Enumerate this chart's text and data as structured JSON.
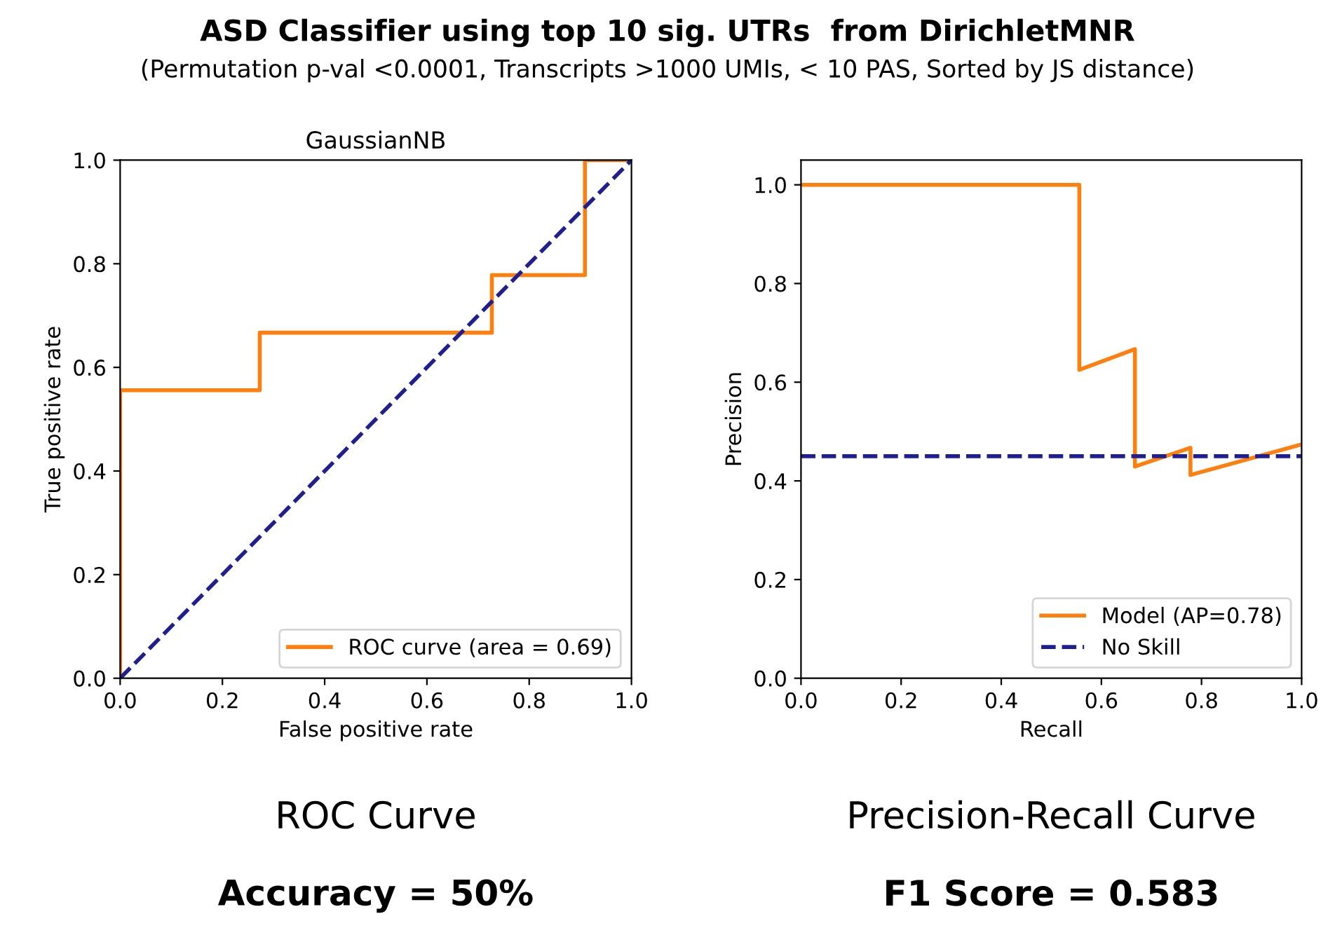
{
  "chart_data": [
    {
      "type": "line",
      "title": "GaussianNB",
      "xlabel": "False positive rate",
      "ylabel": "True positive rate",
      "annotations": [
        "ASD Classifier using top 10 sig. UTRs  from DirichletMNR",
        "(Permutation p-val <0.0001, Transcripts >1000 UMIs, < 10 PAS, Sorted by JS distance)",
        "ROC Curve",
        "Accuracy = 50%"
      ],
      "series": [
        {
          "name": "ROC curve (area = 0.69)",
          "color": "#ff7f0e",
          "line_style": "solid",
          "x": [
            0,
            0,
            0.273,
            0.273,
            0.727,
            0.727,
            0.909,
            0.909,
            1.0
          ],
          "values": [
            0,
            0.556,
            0.556,
            0.667,
            0.667,
            0.778,
            0.778,
            1.0,
            1.0
          ]
        },
        {
          "color": "#1f1f8f",
          "line_style": "dashed",
          "x": [
            0,
            1.0
          ],
          "values": [
            0,
            1.0
          ]
        }
      ],
      "xlim": [
        0,
        1.0
      ],
      "ylim": [
        0,
        1.0
      ],
      "xticks": [
        {
          "value": 0,
          "label": "0.0"
        },
        {
          "value": 0.2,
          "label": "0.2"
        },
        {
          "value": 0.4,
          "label": "0.4"
        },
        {
          "value": 0.6,
          "label": "0.6"
        },
        {
          "value": 0.8,
          "label": "0.8"
        },
        {
          "value": 1.0,
          "label": "1.0"
        }
      ],
      "yticks": [
        {
          "value": 0,
          "label": "0.0"
        },
        {
          "value": 0.2,
          "label": "0.2"
        },
        {
          "value": 0.4,
          "label": "0.4"
        },
        {
          "value": 0.6,
          "label": "0.6"
        },
        {
          "value": 0.8,
          "label": "0.8"
        },
        {
          "value": 1.0,
          "label": "1.0"
        }
      ],
      "legend": "bottom right",
      "grid": false,
      "marker": "none"
    },
    {
      "type": "line",
      "xlabel": "Recall",
      "ylabel": "Precision",
      "annotations": [
        "Precision-Recall Curve",
        "F1 Score = 0.583"
      ],
      "series": [
        {
          "name": "Model (AP=0.78)",
          "color": "#ff7f0e",
          "line_style": "solid",
          "x": [
            0,
            0.556,
            0.556,
            0.667,
            0.667,
            0.778,
            0.778,
            1.0
          ],
          "values": [
            1.0,
            1.0,
            0.625,
            0.667,
            0.429,
            0.467,
            0.412,
            0.474
          ]
        },
        {
          "name": "No Skill",
          "color": "#1f1f8f",
          "line_style": "dashed",
          "x": [
            0,
            1.0
          ],
          "values": [
            0.45,
            0.45
          ]
        }
      ],
      "xlim": [
        0,
        1.0
      ],
      "ylim": [
        0,
        1.05
      ],
      "xticks": [
        {
          "value": 0,
          "label": "0.0"
        },
        {
          "value": 0.2,
          "label": "0.2"
        },
        {
          "value": 0.4,
          "label": "0.4"
        },
        {
          "value": 0.6,
          "label": "0.6"
        },
        {
          "value": 0.8,
          "label": "0.8"
        },
        {
          "value": 1.0,
          "label": "1.0"
        }
      ],
      "yticks": [
        {
          "value": 0,
          "label": "0.0"
        },
        {
          "value": 0.2,
          "label": "0.2"
        },
        {
          "value": 0.4,
          "label": "0.4"
        },
        {
          "value": 0.6,
          "label": "0.6"
        },
        {
          "value": 0.8,
          "label": "0.8"
        },
        {
          "value": 1.0,
          "label": "1.0"
        }
      ],
      "legend": "bottom right",
      "grid": false,
      "marker": "none"
    }
  ]
}
